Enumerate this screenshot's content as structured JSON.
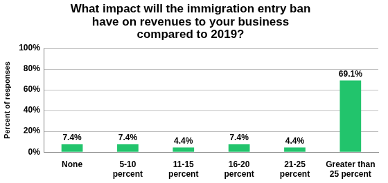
{
  "chart_data": {
    "type": "bar",
    "title": "What impact will the immigration entry ban have on revenues to your business compared to 2019?",
    "y_label": "Percent of responses",
    "categories": [
      "None",
      "5-10 percent",
      "11-15 percent",
      "16-20 percent",
      "21-25 percent",
      "Greater than 25 percent"
    ],
    "values": [
      7.4,
      7.4,
      4.4,
      7.4,
      4.4,
      69.1
    ],
    "value_labels": [
      "7.4%",
      "7.4%",
      "4.4%",
      "7.4%",
      "4.4%",
      "69.1%"
    ],
    "data_labels": true,
    "color": "#22c46c",
    "ylim": [
      0,
      100
    ],
    "yticks": [
      {
        "value": 0,
        "label": "0%"
      },
      {
        "value": 20,
        "label": "20%"
      },
      {
        "value": 40,
        "label": "40%"
      },
      {
        "value": 60,
        "label": "60%"
      },
      {
        "value": 80,
        "label": "80%"
      },
      {
        "value": 100,
        "label": "100%"
      }
    ],
    "grid": true
  }
}
